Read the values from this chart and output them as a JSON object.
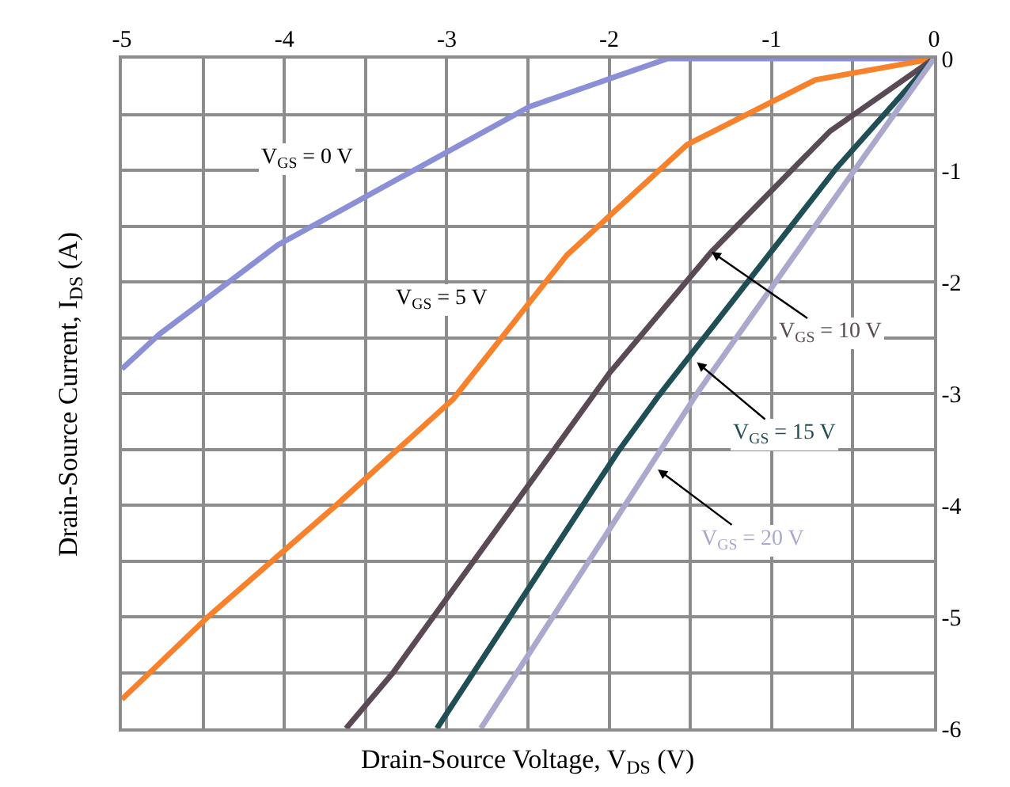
{
  "chart_data": {
    "type": "line",
    "xlabel": "Drain-Source Voltage, V$_{DS}$ (V)",
    "ylabel": "Drain-Source Current, I$_{DS}$ (A)",
    "series": [
      {
        "name": "V$_{GS}$ = 0 V",
        "color": "#8b8fd6",
        "x": [
          -5,
          -4.77,
          -4.04,
          -2.49,
          -1.64,
          0
        ],
        "values": [
          -2.78,
          -2.47,
          -1.67,
          -0.43,
          0,
          0
        ]
      },
      {
        "name": "V$_{GS}$ = 5 V",
        "color": "#f7822b",
        "x": [
          -5,
          -4.47,
          -3.68,
          -2.96,
          -2.26,
          -1.52,
          -0.73,
          0
        ],
        "values": [
          -5.74,
          -5.0,
          -4.0,
          -3.05,
          -1.76,
          -0.77,
          -0.19,
          0
        ]
      },
      {
        "name": "V$_{GS}$ = 10 V",
        "color": "#5a4a55",
        "x": [
          -3.62,
          -3.33,
          -2.0,
          -1.37,
          -0.64,
          0
        ],
        "values": [
          -6.0,
          -5.5,
          -2.82,
          -1.73,
          -0.65,
          0
        ]
      },
      {
        "name": "V$_{GS}$ = 15 V",
        "color": "#1f4e55",
        "x": [
          -3.06,
          -1.95,
          -1.7,
          -0.6,
          0
        ],
        "values": [
          -6.0,
          -3.53,
          -3.03,
          -0.98,
          0
        ]
      },
      {
        "name": "V$_{GS}$ = 20 V",
        "color": "#aaa8cc",
        "x": [
          -2.79,
          -1.45,
          -0.49,
          0
        ],
        "values": [
          -6.0,
          -2.98,
          -1.0,
          0
        ]
      }
    ],
    "xlim": [
      -5,
      0
    ],
    "ylim": [
      -6,
      0
    ],
    "xticks": [
      -5,
      {
        "value": -4.5,
        "label": null
      },
      -4,
      {
        "value": -3.5,
        "label": null
      },
      -3,
      {
        "value": -2.5,
        "label": null
      },
      -2,
      {
        "value": -1.5,
        "label": null
      },
      -1,
      {
        "value": -0.5,
        "label": null
      },
      0
    ],
    "yticks": [
      -6,
      {
        "value": -5.5,
        "label": null
      },
      -5,
      {
        "value": -4.5,
        "label": null
      },
      -4,
      {
        "value": -3.5,
        "label": null
      },
      -3,
      {
        "value": -2.5,
        "label": null
      },
      -2,
      {
        "value": -1.5,
        "label": null
      },
      -1,
      {
        "value": -0.5,
        "label": null
      },
      0
    ],
    "grid": true,
    "legend": false,
    "marker": "none",
    "line_style": "solid"
  }
}
